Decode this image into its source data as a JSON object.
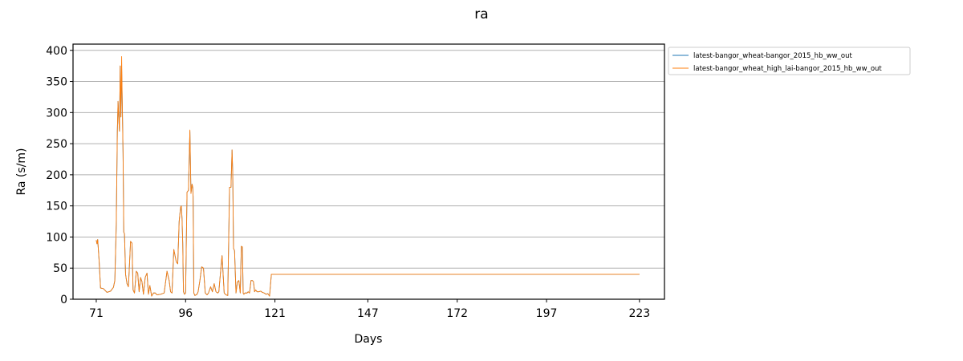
{
  "chart_data": {
    "type": "line",
    "title": "ra",
    "xlabel": "Days",
    "ylabel": "Ra (s/m)",
    "xlim": [
      64.5,
      230
    ],
    "ylim": [
      0,
      410
    ],
    "xticks": [
      71,
      96,
      121,
      147,
      172,
      197,
      223
    ],
    "yticks": [
      0,
      50,
      100,
      150,
      200,
      250,
      300,
      350,
      400
    ],
    "grid": "y",
    "legend_position": "outside-top-right",
    "series": [
      {
        "name": "latest-bangor_wheat-bangor_2015_hb_ww_out",
        "color": "#1f77b4",
        "x": [
          71.0,
          71.2,
          71.4,
          71.8,
          72.2,
          73.0,
          74.0,
          75.0,
          75.8,
          76.2,
          76.6,
          76.9,
          77.1,
          77.3,
          77.5,
          77.7,
          77.9,
          78.1,
          78.3,
          78.5,
          78.7,
          78.9,
          79.2,
          79.6,
          80.0,
          80.6,
          81.0,
          81.3,
          81.7,
          82.2,
          82.6,
          83.0,
          83.4,
          83.8,
          84.2,
          84.7,
          85.2,
          85.6,
          86.0,
          86.5,
          87.0,
          87.5,
          88.0,
          89.0,
          90.0,
          90.8,
          91.4,
          91.8,
          92.2,
          92.7,
          93.4,
          93.8,
          94.2,
          94.6,
          94.8,
          95.0,
          95.2,
          95.4,
          95.7,
          96.0,
          96.4,
          96.8,
          97.2,
          97.5,
          97.8,
          98.0,
          98.1,
          98.3,
          98.6,
          98.9,
          99.2,
          99.5,
          100.0,
          100.5,
          101.0,
          101.5,
          102.0,
          102.4,
          103.0,
          103.5,
          104.0,
          104.5,
          105.0,
          105.3,
          105.8,
          106.2,
          106.8,
          107.3,
          107.8,
          108.3,
          108.7,
          109.0,
          109.2,
          109.4,
          109.7,
          110.1,
          110.5,
          110.9,
          111.3,
          111.6,
          111.9,
          112.1,
          112.3,
          112.6,
          112.9,
          113.2,
          113.5,
          113.9,
          114.3,
          114.7,
          115.0,
          115.3,
          115.6,
          116.0,
          116.5,
          117.0,
          117.5,
          118.0,
          118.5,
          119.0,
          119.5,
          120.0,
          120.5,
          121.0,
          121.5,
          122.0,
          122.5,
          123.0,
          123.5,
          124.0,
          124.5,
          125.0,
          125.5,
          126.0,
          130.0,
          147.0,
          172.0,
          197.0,
          223.0
        ],
        "values": [
          95,
          89,
          96,
          62,
          18,
          17,
          11,
          13,
          19,
          30,
          120,
          270,
          318,
          290,
          270,
          375,
          293,
          370,
          310,
          235,
          108,
          105,
          40,
          25,
          20,
          93,
          90,
          15,
          10,
          45,
          42,
          12,
          35,
          28,
          8,
          35,
          42,
          8,
          22,
          5,
          10,
          10,
          7,
          8,
          10,
          45,
          30,
          12,
          10,
          80,
          60,
          57,
          125,
          148,
          150,
          130,
          90,
          12,
          8,
          10,
          172,
          175,
          270,
          170,
          185,
          180,
          165,
          10,
          6,
          7,
          8,
          12,
          30,
          52,
          50,
          10,
          7,
          10,
          20,
          12,
          25,
          12,
          10,
          12,
          45,
          70,
          10,
          7,
          6,
          180,
          180,
          240,
          200,
          82,
          78,
          10,
          28,
          30,
          10,
          85,
          84,
          10,
          8,
          10,
          10,
          10,
          12,
          10,
          30,
          30,
          28,
          12,
          15,
          12,
          12,
          13,
          11,
          10,
          8,
          9,
          5,
          40,
          40,
          40,
          40,
          40,
          40,
          40,
          40,
          40,
          40,
          40,
          40,
          40,
          40,
          40,
          40,
          40,
          40
        ]
      },
      {
        "name": "latest-bangor_wheat_high_lai-bangor_2015_hb_ww_out",
        "color": "#ff7f0e",
        "x": [
          71.0,
          71.2,
          71.4,
          71.8,
          72.2,
          73.0,
          74.0,
          75.0,
          75.8,
          76.2,
          76.6,
          76.9,
          77.1,
          77.3,
          77.5,
          77.7,
          77.9,
          78.1,
          78.3,
          78.5,
          78.7,
          78.9,
          79.2,
          79.6,
          80.0,
          80.6,
          81.0,
          81.3,
          81.7,
          82.2,
          82.6,
          83.0,
          83.4,
          83.8,
          84.2,
          84.7,
          85.2,
          85.6,
          86.0,
          86.5,
          87.0,
          87.5,
          88.0,
          89.0,
          90.0,
          90.8,
          91.4,
          91.8,
          92.2,
          92.7,
          93.4,
          93.8,
          94.2,
          94.6,
          94.8,
          95.0,
          95.2,
          95.4,
          95.7,
          96.0,
          96.4,
          96.8,
          97.2,
          97.5,
          97.8,
          98.0,
          98.1,
          98.3,
          98.6,
          98.9,
          99.2,
          99.5,
          100.0,
          100.5,
          101.0,
          101.5,
          102.0,
          102.4,
          103.0,
          103.5,
          104.0,
          104.5,
          105.0,
          105.3,
          105.8,
          106.2,
          106.8,
          107.3,
          107.8,
          108.3,
          108.7,
          109.0,
          109.2,
          109.4,
          109.7,
          110.1,
          110.5,
          110.9,
          111.3,
          111.6,
          111.9,
          112.1,
          112.3,
          112.6,
          112.9,
          113.2,
          113.5,
          113.9,
          114.3,
          114.7,
          115.0,
          115.3,
          115.6,
          116.0,
          116.5,
          117.0,
          117.5,
          118.0,
          118.5,
          119.0,
          119.5,
          120.0,
          120.5,
          121.0,
          121.5,
          122.0,
          122.5,
          123.0,
          123.5,
          124.0,
          124.5,
          125.0,
          125.5,
          126.0,
          130.0,
          147.0,
          172.0,
          197.0,
          223.0
        ],
        "values": [
          95,
          89,
          96,
          62,
          18,
          17,
          11,
          13,
          19,
          30,
          120,
          270,
          318,
          290,
          270,
          375,
          293,
          390,
          305,
          235,
          108,
          105,
          40,
          25,
          20,
          93,
          90,
          15,
          10,
          45,
          42,
          12,
          35,
          28,
          8,
          35,
          42,
          8,
          22,
          5,
          10,
          10,
          7,
          8,
          10,
          45,
          30,
          12,
          10,
          80,
          60,
          57,
          125,
          148,
          150,
          130,
          90,
          12,
          8,
          10,
          172,
          175,
          272,
          170,
          185,
          180,
          165,
          10,
          6,
          7,
          8,
          12,
          30,
          52,
          50,
          10,
          7,
          10,
          20,
          12,
          25,
          12,
          10,
          12,
          45,
          70,
          10,
          7,
          6,
          180,
          180,
          240,
          200,
          82,
          78,
          10,
          28,
          30,
          10,
          85,
          84,
          10,
          8,
          10,
          10,
          10,
          12,
          10,
          30,
          30,
          28,
          12,
          15,
          12,
          12,
          13,
          11,
          10,
          8,
          9,
          5,
          40,
          40,
          40,
          40,
          40,
          40,
          40,
          40,
          40,
          40,
          40,
          40,
          40,
          40,
          40,
          40,
          40,
          40
        ]
      }
    ]
  }
}
